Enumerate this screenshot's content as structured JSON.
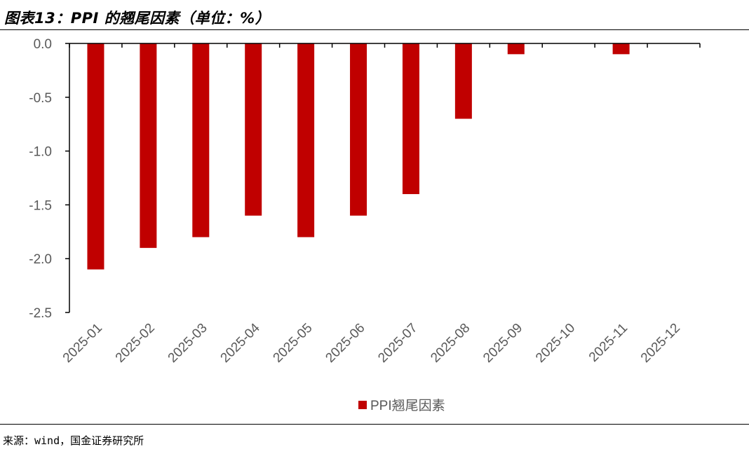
{
  "figure": {
    "title": "图表13：PPI 的翘尾因素（单位：%）",
    "source": "来源：wind，国金证券研究所"
  },
  "colors": {
    "bar": "#C00000",
    "axis": "#000000",
    "tick_text": "#595959"
  },
  "chart_data": {
    "type": "bar",
    "title": "",
    "xlabel": "",
    "ylabel": "",
    "categories": [
      "2025-01",
      "2025-02",
      "2025-03",
      "2025-04",
      "2025-05",
      "2025-06",
      "2025-07",
      "2025-08",
      "2025-09",
      "2025-10",
      "2025-11",
      "2025-12"
    ],
    "series": [
      {
        "name": "PPI翘尾因素",
        "values": [
          -2.1,
          -1.9,
          -1.8,
          -1.6,
          -1.8,
          -1.6,
          -1.4,
          -0.7,
          -0.1,
          0.0,
          -0.1,
          0.0
        ]
      }
    ],
    "ylim": [
      -2.5,
      0.0
    ],
    "yticks": [
      "0.0",
      "-0.5",
      "-1.0",
      "-1.5",
      "-2.0",
      "-2.5"
    ],
    "ytick_values": [
      0.0,
      -0.5,
      -1.0,
      -1.5,
      -2.0,
      -2.5
    ],
    "grid": false,
    "legend_position": "bottom-center",
    "xtick_rotation": "45 degrees"
  }
}
